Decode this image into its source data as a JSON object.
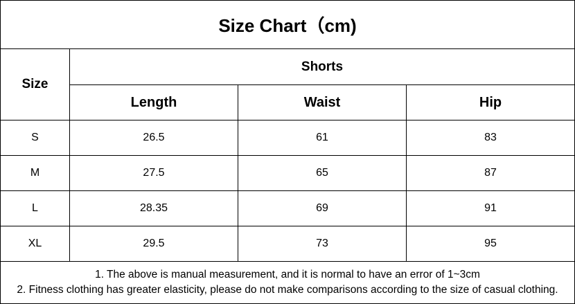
{
  "title": "Size Chart（cm)",
  "header": {
    "size_label": "Size",
    "group_label": "Shorts",
    "columns": [
      "Length",
      "Waist",
      "Hip"
    ]
  },
  "rows": [
    {
      "size": "S",
      "length": "26.5",
      "waist": "61",
      "hip": "83"
    },
    {
      "size": "M",
      "length": "27.5",
      "waist": "65",
      "hip": "87"
    },
    {
      "size": "L",
      "length": "28.35",
      "waist": "69",
      "hip": "91"
    },
    {
      "size": "XL",
      "length": "29.5",
      "waist": "73",
      "hip": "95"
    }
  ],
  "notes": [
    "1. The above is manual measurement, and it is normal to have an error of 1~3cm",
    "2. Fitness clothing has greater elasticity, please do not make comparisons according to the size of casual clothing."
  ]
}
